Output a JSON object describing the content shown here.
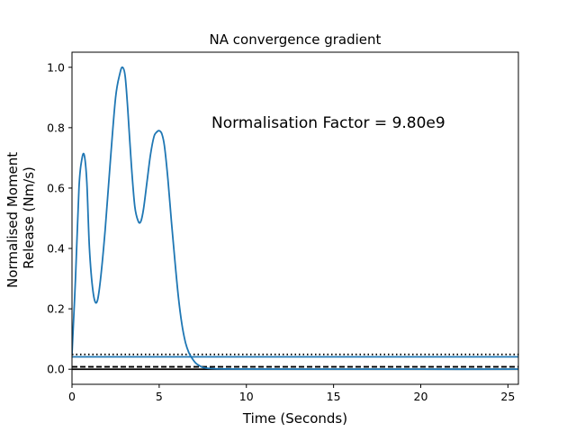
{
  "chart_data": {
    "type": "line",
    "title": "NA convergence gradient",
    "xlabel": "Time (Seconds)",
    "ylabel": [
      "Normalised Moment",
      "Release (Nm/s)"
    ],
    "xlim": [
      0,
      25.6
    ],
    "ylim": [
      -0.05,
      1.05
    ],
    "xticks": [
      0,
      5,
      10,
      15,
      20,
      25
    ],
    "yticks": [
      0.0,
      0.2,
      0.4,
      0.6,
      0.8,
      1.0
    ],
    "xtick_labels": [
      "0",
      "5",
      "10",
      "15",
      "20",
      "25"
    ],
    "ytick_labels": [
      "0.0",
      "0.2",
      "0.4",
      "0.6",
      "0.8",
      "1.0"
    ],
    "annotation": "Normalisation Factor = 9.80e9",
    "grid": false,
    "series": [
      {
        "style": "solid",
        "color": "#1f77b4",
        "x": [
          0,
          0.2,
          0.4,
          0.55,
          0.7,
          0.85,
          1.0,
          1.2,
          1.4,
          1.6,
          1.9,
          2.2,
          2.5,
          2.75,
          2.9,
          3.05,
          3.2,
          3.4,
          3.6,
          3.8,
          3.95,
          4.1,
          4.3,
          4.5,
          4.7,
          4.85,
          5.0,
          5.15,
          5.3,
          5.5,
          5.7,
          5.9,
          6.1,
          6.3,
          6.5,
          6.7,
          6.9,
          7.1,
          7.3,
          7.5,
          7.8,
          8.2,
          9.0,
          10,
          15,
          20,
          25.6
        ],
        "y": [
          0.05,
          0.3,
          0.6,
          0.69,
          0.71,
          0.62,
          0.4,
          0.26,
          0.22,
          0.28,
          0.46,
          0.69,
          0.9,
          0.98,
          1.0,
          0.97,
          0.86,
          0.68,
          0.54,
          0.49,
          0.49,
          0.53,
          0.62,
          0.71,
          0.77,
          0.785,
          0.79,
          0.78,
          0.74,
          0.63,
          0.49,
          0.36,
          0.24,
          0.15,
          0.09,
          0.055,
          0.035,
          0.02,
          0.012,
          0.006,
          0.003,
          0.0015,
          0.0008,
          0.0005,
          0.0003,
          0.0002,
          0.0002
        ]
      }
    ],
    "hlines": [
      {
        "y": 0.049,
        "style": "dotted",
        "color": "#000000"
      },
      {
        "y": 0.041,
        "style": "solid",
        "color": "#1f77b4"
      },
      {
        "y": 0.008,
        "style": "dashed",
        "color": "#000000"
      },
      {
        "y": 0.0,
        "style": "solid",
        "color": "#000000"
      }
    ]
  }
}
